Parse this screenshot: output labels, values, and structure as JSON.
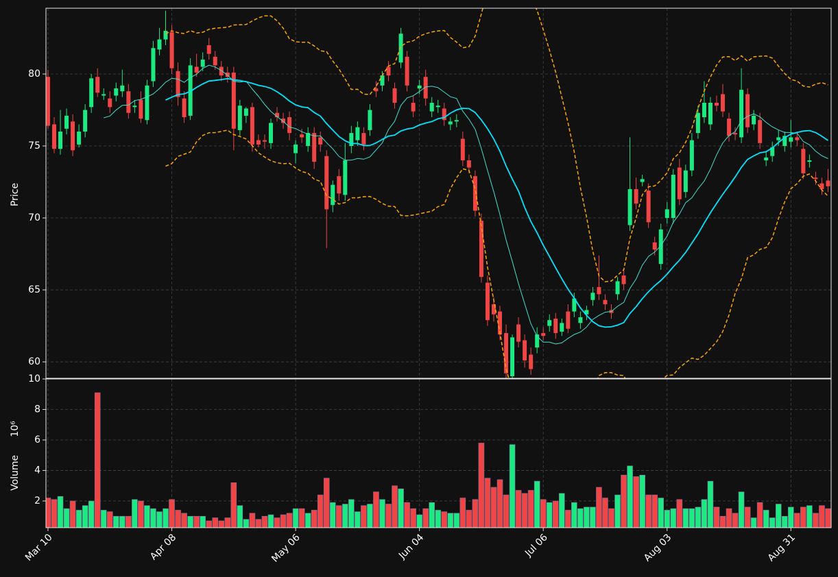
{
  "chart_data": {
    "type": "candlestick",
    "ylabel": "Price",
    "volume_ylabel": "Volume",
    "volume_scale": "10⁶",
    "xlim": [
      -0.33,
      126.5
    ],
    "xticks": [
      {
        "value": 0,
        "label": "Mar 10"
      },
      {
        "value": 20,
        "label": "Apr 08"
      },
      {
        "value": 40,
        "label": "May 06"
      },
      {
        "value": 60,
        "label": "Jun 04"
      },
      {
        "value": 80,
        "label": "Jul 06"
      },
      {
        "value": 100,
        "label": "Aug 03"
      },
      {
        "value": 120,
        "label": "Aug 31"
      }
    ],
    "ylim": [
      58.86,
      84.57
    ],
    "yticks": [
      60,
      65,
      70,
      75,
      80
    ],
    "volume_ylim": [
      0.25,
      10
    ],
    "volume_yticks": [
      2,
      4,
      6,
      8,
      10
    ],
    "grid": true,
    "up_color": "#1de982",
    "down_color": "#ef4545",
    "mav": [
      10,
      20
    ],
    "mav_colors": [
      "#40e0d0",
      "#00e5ff"
    ],
    "bollinger": {
      "period": 20,
      "std": 2,
      "color": "#ffa500"
    },
    "open": [
      79.8,
      76.5,
      74.8,
      76.2,
      76.7,
      75.1,
      76.0,
      77.7,
      79.8,
      78.5,
      78.3,
      78.5,
      78.8,
      78.8,
      77.7,
      78.2,
      76.8,
      79.5,
      81.7,
      82.4,
      82.9,
      80.2,
      78.3,
      77.1,
      80.5,
      80.5,
      82.0,
      81.2,
      80.5,
      80.1,
      80.1,
      76.1,
      77.1,
      77.7,
      75.4,
      75.4,
      75.2,
      77.3,
      76.9,
      77.0,
      74.5,
      75.8,
      75.0,
      75.9,
      75.6,
      74.3,
      70.9,
      72.9,
      71.6,
      75.0,
      75.4,
      75.9,
      76.1,
      79.0,
      79.2,
      80.5,
      79.0,
      80.8,
      81.2,
      78.0,
      79.0,
      79.8,
      77.4,
      77.7,
      77.6,
      76.5,
      76.7,
      75.5,
      74.0,
      72.9,
      69.8,
      65.5,
      64.0,
      63.5,
      62.0,
      59.0,
      62.6,
      61.5,
      60.5,
      61.0,
      62.0,
      62.5,
      63.0,
      62.1,
      63.5,
      63.5,
      62.7,
      63.3,
      64.3,
      65.2,
      64.3,
      63.6,
      64.7,
      66.0,
      69.5,
      72.0,
      72.5,
      71.9,
      68.3,
      66.8,
      70.0,
      70.0,
      73.5,
      71.8,
      73.3,
      75.9,
      77.0,
      76.5,
      78.0,
      78.6,
      76.9,
      75.9,
      75.6,
      78.6,
      76.5,
      76.8,
      74.0,
      74.3,
      75.4,
      75.0,
      75.3,
      75.6,
      74.8,
      73.9,
      72.8,
      72.4,
      72.6
    ],
    "high": [
      80.3,
      77.0,
      77.5,
      77.6,
      77.2,
      76.5,
      77.9,
      80.0,
      80.4,
      79.0,
      78.8,
      79.4,
      80.3,
      79.3,
      78.2,
      78.8,
      79.6,
      82.3,
      83.2,
      84.4,
      83.4,
      80.8,
      78.8,
      81.1,
      81.4,
      81.5,
      82.5,
      81.6,
      80.9,
      80.5,
      80.5,
      78.2,
      77.7,
      78.0,
      75.8,
      75.8,
      76.9,
      77.7,
      77.3,
      77.4,
      75.4,
      76.2,
      76.3,
      76.3,
      76.0,
      74.7,
      72.6,
      73.4,
      75.2,
      76.4,
      76.7,
      76.3,
      77.9,
      79.5,
      80.2,
      80.9,
      79.4,
      83.2,
      81.6,
      78.5,
      79.6,
      80.3,
      78.4,
      78.2,
      78.0,
      77.0,
      77.2,
      76.0,
      74.4,
      73.3,
      70.3,
      66.0,
      64.5,
      63.9,
      62.6,
      61.9,
      63.1,
      61.9,
      61.0,
      62.4,
      62.4,
      63.3,
      63.4,
      63.0,
      64.0,
      64.8,
      63.5,
      63.9,
      65.2,
      67.4,
      64.7,
      64.0,
      65.9,
      66.4,
      75.6,
      72.8,
      73.0,
      72.4,
      68.7,
      69.6,
      71.1,
      73.4,
      74.1,
      73.7,
      75.9,
      77.8,
      79.5,
      78.4,
      78.5,
      79.3,
      77.3,
      76.3,
      80.4,
      79.0,
      77.5,
      77.3,
      74.6,
      75.3,
      76.1,
      76.0,
      76.8,
      76.0,
      75.2,
      74.4,
      73.2,
      72.8,
      73.4
    ],
    "low": [
      76.2,
      74.5,
      74.4,
      75.8,
      74.3,
      74.9,
      75.6,
      77.3,
      78.4,
      78.2,
      77.3,
      78.1,
      78.4,
      76.9,
      77.3,
      76.6,
      76.5,
      79.1,
      81.3,
      82.0,
      80.0,
      77.8,
      76.6,
      76.8,
      79.8,
      80.2,
      81.0,
      80.3,
      79.5,
      79.4,
      74.7,
      75.7,
      76.6,
      74.6,
      74.9,
      74.8,
      74.8,
      76.7,
      76.2,
      75.4,
      73.8,
      75.2,
      74.6,
      73.4,
      74.6,
      67.9,
      70.4,
      71.2,
      71.2,
      74.5,
      75.0,
      74.7,
      75.7,
      78.4,
      78.8,
      79.5,
      77.6,
      80.4,
      78.8,
      77.0,
      78.6,
      77.8,
      77.0,
      77.3,
      76.4,
      76.1,
      76.3,
      73.6,
      73.1,
      70.1,
      65.5,
      62.5,
      62.8,
      61.5,
      58.6,
      58.6,
      61.0,
      59.6,
      59.1,
      60.6,
      61.5,
      62.1,
      61.6,
      61.8,
      62.0,
      63.1,
      62.3,
      62.9,
      63.9,
      64.3,
      63.6,
      63.0,
      64.3,
      65.0,
      69.1,
      70.6,
      72.2,
      69.3,
      67.4,
      66.4,
      69.6,
      69.6,
      70.9,
      71.4,
      72.9,
      75.5,
      76.6,
      76.1,
      77.4,
      77.0,
      75.3,
      75.4,
      75.2,
      75.9,
      76.1,
      74.8,
      73.6,
      73.9,
      75.0,
      74.6,
      74.9,
      75.0,
      72.7,
      73.5,
      72.3,
      71.6,
      71.8
    ],
    "close": [
      76.4,
      74.8,
      76.0,
      77.1,
      74.7,
      76.0,
      77.5,
      79.7,
      78.7,
      78.6,
      77.7,
      79.0,
      79.2,
      77.3,
      77.8,
      76.9,
      79.2,
      81.8,
      82.4,
      83.0,
      80.4,
      78.4,
      77.0,
      80.6,
      80.1,
      81.0,
      81.4,
      80.6,
      79.9,
      79.8,
      76.2,
      77.8,
      77.6,
      75.1,
      75.1,
      75.3,
      76.6,
      77.0,
      76.6,
      75.9,
      75.1,
      75.6,
      75.9,
      73.9,
      75.1,
      70.6,
      72.3,
      71.7,
      74.0,
      75.9,
      76.3,
      75.1,
      77.5,
      78.8,
      79.9,
      79.9,
      78.0,
      82.8,
      79.2,
      77.4,
      79.2,
      78.3,
      78.0,
      77.8,
      76.8,
      76.7,
      76.8,
      74.0,
      73.5,
      70.5,
      65.9,
      62.9,
      63.3,
      61.9,
      59.2,
      61.7,
      61.4,
      60.1,
      59.5,
      61.9,
      61.8,
      62.9,
      62.0,
      62.7,
      62.3,
      64.4,
      63.1,
      63.6,
      64.8,
      64.7,
      64.0,
      63.4,
      65.6,
      65.4,
      72.0,
      71.0,
      72.7,
      69.7,
      67.8,
      69.2,
      70.6,
      73.0,
      71.3,
      73.3,
      75.4,
      77.3,
      78.0,
      78.0,
      77.8,
      77.4,
      75.7,
      75.8,
      78.9,
      76.3,
      77.1,
      75.2,
      74.2,
      74.9,
      75.6,
      75.7,
      75.6,
      75.4,
      73.1,
      74.0,
      72.7,
      72.0,
      72.2
    ],
    "volume": [
      2.2,
      2.1,
      2.3,
      1.5,
      2.0,
      1.4,
      1.7,
      2.0,
      9.1,
      1.4,
      1.3,
      1.0,
      1.0,
      1.0,
      2.1,
      2.0,
      1.7,
      1.5,
      1.3,
      1.5,
      2.1,
      1.4,
      1.2,
      1.0,
      1.0,
      1.0,
      0.7,
      0.9,
      0.7,
      0.9,
      3.2,
      1.7,
      0.8,
      1.2,
      0.8,
      1.0,
      1.1,
      0.9,
      1.1,
      1.2,
      1.5,
      1.5,
      1.2,
      1.4,
      2.4,
      3.5,
      1.9,
      1.7,
      1.8,
      2.1,
      1.3,
      1.7,
      1.8,
      2.6,
      2.1,
      1.8,
      3.0,
      2.8,
      1.9,
      1.5,
      1.1,
      1.5,
      1.9,
      1.4,
      1.3,
      1.2,
      1.2,
      2.2,
      1.4,
      2.1,
      5.8,
      3.5,
      2.9,
      3.4,
      2.4,
      5.7,
      2.7,
      2.5,
      2.7,
      3.3,
      2.1,
      1.9,
      2.0,
      2.5,
      1.4,
      1.9,
      1.5,
      1.6,
      1.6,
      2.9,
      2.2,
      1.5,
      2.4,
      3.7,
      4.3,
      3.6,
      3.7,
      2.4,
      2.4,
      2.2,
      1.4,
      1.5,
      2.1,
      1.5,
      1.5,
      1.6,
      2.1,
      3.3,
      1.6,
      1.0,
      1.5,
      1.2,
      2.6,
      1.6,
      0.9,
      1.9,
      1.4,
      0.9,
      1.8,
      1.0,
      1.6,
      1.2,
      1.6,
      1.7,
      1.2,
      1.7,
      1.5
    ]
  }
}
